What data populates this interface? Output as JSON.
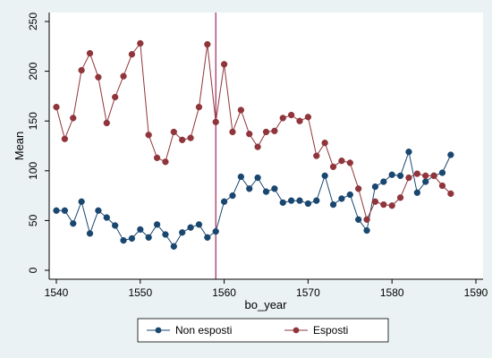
{
  "chart_data": {
    "type": "line",
    "xlabel": "bo_year",
    "ylabel": "Mean",
    "xlim": [
      1540,
      1590
    ],
    "ylim": [
      0,
      250
    ],
    "xticks": [
      1540,
      1550,
      1560,
      1570,
      1580,
      1590
    ],
    "yticks": [
      0,
      50,
      100,
      150,
      200,
      250
    ],
    "grid": false,
    "legend_position": "bottom",
    "reference_line": {
      "axis": "x",
      "value": 1559,
      "color": "#a4245e"
    },
    "x": [
      1540,
      1541,
      1542,
      1543,
      1544,
      1545,
      1546,
      1547,
      1548,
      1549,
      1550,
      1551,
      1552,
      1553,
      1554,
      1555,
      1556,
      1557,
      1558,
      1559,
      1560,
      1561,
      1562,
      1563,
      1564,
      1565,
      1566,
      1567,
      1568,
      1569,
      1570,
      1571,
      1572,
      1573,
      1574,
      1575,
      1576,
      1577,
      1578,
      1579,
      1580,
      1581,
      1582,
      1583,
      1584,
      1585,
      1586,
      1587
    ],
    "series": [
      {
        "name": "Non esposti",
        "color": "#1a476f",
        "values": [
          60,
          60,
          47,
          69,
          37,
          60,
          53,
          45,
          30,
          32,
          41,
          33,
          46,
          36,
          24,
          38,
          43,
          46,
          33,
          39,
          69,
          75,
          94,
          82,
          93,
          79,
          82,
          68,
          70,
          70,
          67,
          70,
          95,
          66,
          72,
          76,
          51,
          40,
          84,
          89,
          96,
          95,
          119,
          78,
          89,
          95,
          98,
          116
        ]
      },
      {
        "name": "Esposti",
        "color": "#90353b",
        "values": [
          164,
          132,
          153,
          201,
          218,
          194,
          148,
          174,
          195,
          217,
          228,
          136,
          113,
          109,
          139,
          131,
          133,
          164,
          227,
          149,
          207,
          139,
          161,
          137,
          124,
          139,
          140,
          153,
          156,
          150,
          154,
          115,
          128,
          104,
          110,
          108,
          82,
          51,
          69,
          66,
          65,
          73,
          93,
          97,
          95,
          95,
          85,
          77
        ]
      }
    ]
  }
}
